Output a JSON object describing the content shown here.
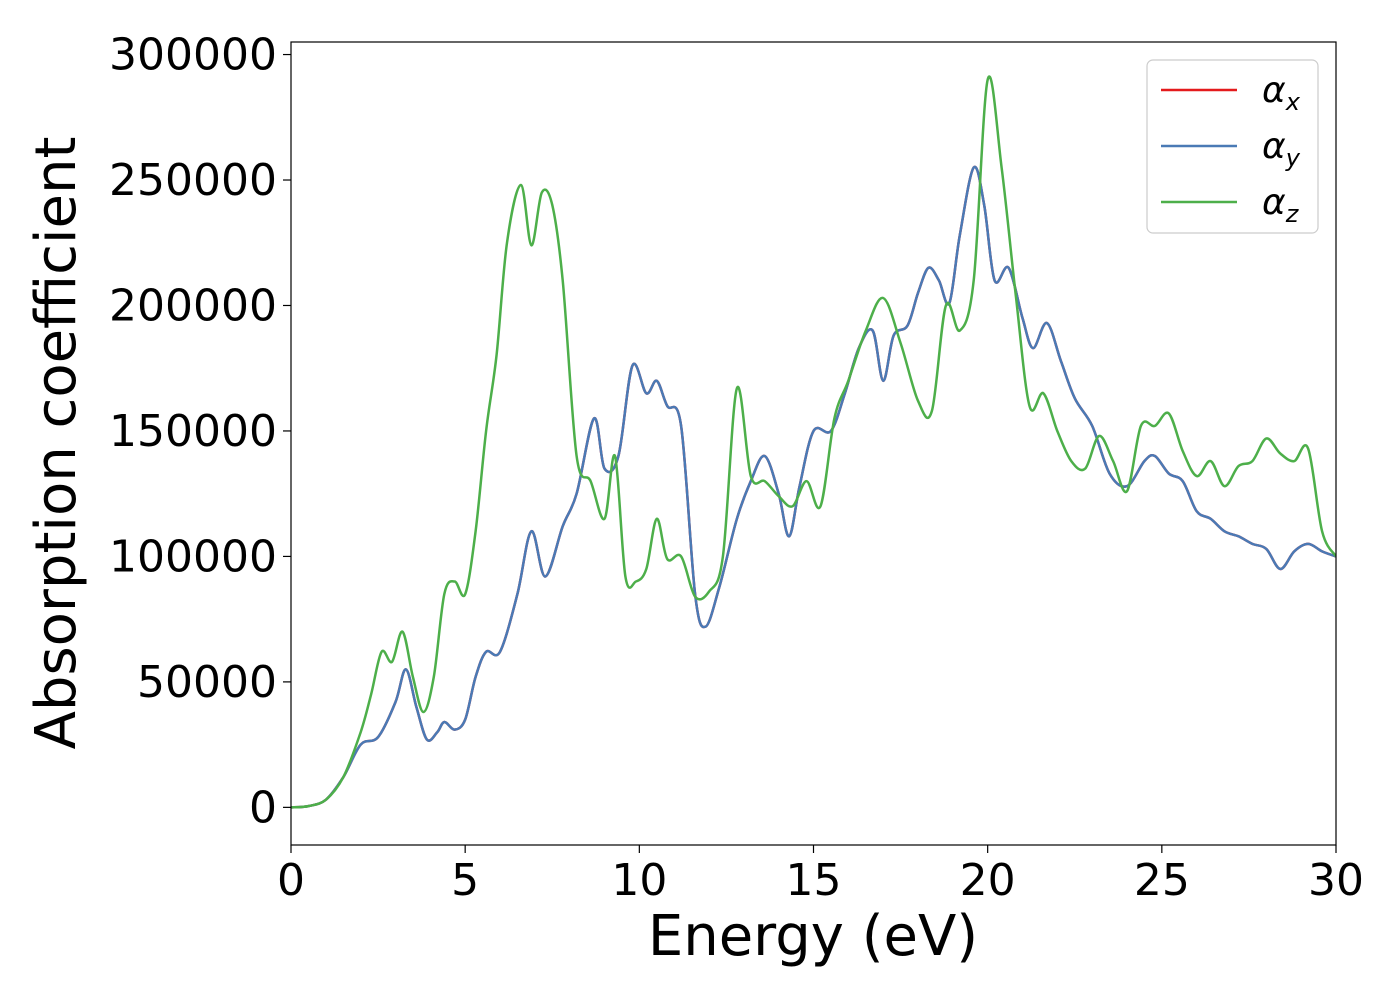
{
  "chart_data": {
    "type": "line",
    "title": "",
    "xlabel": "Energy (eV)",
    "ylabel": "Absorption coefficient",
    "xlim": [
      0,
      30
    ],
    "ylim": [
      -15000,
      305000
    ],
    "xticks": [
      "0",
      "5",
      "10",
      "15",
      "20",
      "25",
      "30"
    ],
    "yticks": [
      "0",
      "50000",
      "100000",
      "150000",
      "200000",
      "250000",
      "300000"
    ],
    "grid": false,
    "legend_position": "top-right",
    "series": [
      {
        "name": "α",
        "subscript": "x",
        "color": "#e41a1c",
        "x": [
          0,
          0.5,
          1.0,
          1.5,
          2.0,
          2.5,
          3.0,
          3.3,
          3.6,
          3.9,
          4.2,
          4.4,
          4.7,
          5.0,
          5.3,
          5.6,
          6.0,
          6.5,
          6.9,
          7.3,
          7.8,
          8.2,
          8.7,
          9.0,
          9.4,
          9.8,
          10.2,
          10.5,
          10.8,
          11.2,
          11.6,
          11.9,
          12.3,
          12.8,
          13.2,
          13.6,
          14.0,
          14.3,
          14.6,
          15.0,
          15.5,
          15.9,
          16.3,
          16.7,
          17.0,
          17.3,
          17.7,
          18.0,
          18.3,
          18.6,
          18.9,
          19.2,
          19.6,
          19.9,
          20.2,
          20.6,
          21.0,
          21.3,
          21.7,
          22.1,
          22.5,
          23.0,
          23.5,
          24.0,
          24.5,
          24.8,
          25.2,
          25.6,
          26.0,
          26.4,
          26.8,
          27.2,
          27.6,
          28.0,
          28.4,
          28.8,
          29.2,
          29.6,
          30.0
        ],
        "values": [
          0,
          500,
          3000,
          12000,
          25000,
          28000,
          42000,
          55000,
          40000,
          27000,
          30000,
          34000,
          31000,
          35000,
          52000,
          62000,
          62000,
          85000,
          110000,
          92000,
          112000,
          125000,
          155000,
          135000,
          140000,
          176000,
          165000,
          170000,
          160000,
          152000,
          85000,
          72000,
          88000,
          115000,
          130000,
          140000,
          125000,
          108000,
          128000,
          150000,
          150000,
          165000,
          183000,
          190000,
          170000,
          188000,
          192000,
          205000,
          215000,
          210000,
          201000,
          228000,
          255000,
          240000,
          210000,
          215000,
          195000,
          183000,
          193000,
          178000,
          163000,
          152000,
          133000,
          128000,
          138000,
          140000,
          133000,
          130000,
          118000,
          115000,
          110000,
          108000,
          105000,
          103000,
          95000,
          102000,
          105000,
          102000,
          100000
        ]
      },
      {
        "name": "α",
        "subscript": "y",
        "color": "#4a7ab5",
        "x": [
          0,
          0.5,
          1.0,
          1.5,
          2.0,
          2.5,
          3.0,
          3.3,
          3.6,
          3.9,
          4.2,
          4.4,
          4.7,
          5.0,
          5.3,
          5.6,
          6.0,
          6.5,
          6.9,
          7.3,
          7.8,
          8.2,
          8.7,
          9.0,
          9.4,
          9.8,
          10.2,
          10.5,
          10.8,
          11.2,
          11.6,
          11.9,
          12.3,
          12.8,
          13.2,
          13.6,
          14.0,
          14.3,
          14.6,
          15.0,
          15.5,
          15.9,
          16.3,
          16.7,
          17.0,
          17.3,
          17.7,
          18.0,
          18.3,
          18.6,
          18.9,
          19.2,
          19.6,
          19.9,
          20.2,
          20.6,
          21.0,
          21.3,
          21.7,
          22.1,
          22.5,
          23.0,
          23.5,
          24.0,
          24.5,
          24.8,
          25.2,
          25.6,
          26.0,
          26.4,
          26.8,
          27.2,
          27.6,
          28.0,
          28.4,
          28.8,
          29.2,
          29.6,
          30.0
        ],
        "values": [
          0,
          500,
          3000,
          12000,
          25000,
          28000,
          42000,
          55000,
          40000,
          27000,
          30000,
          34000,
          31000,
          35000,
          52000,
          62000,
          62000,
          85000,
          110000,
          92000,
          112000,
          125000,
          155000,
          135000,
          140000,
          176000,
          165000,
          170000,
          160000,
          152000,
          85000,
          72000,
          88000,
          115000,
          130000,
          140000,
          125000,
          108000,
          128000,
          150000,
          150000,
          165000,
          183000,
          190000,
          170000,
          188000,
          192000,
          205000,
          215000,
          210000,
          201000,
          228000,
          255000,
          240000,
          210000,
          215000,
          195000,
          183000,
          193000,
          178000,
          163000,
          152000,
          133000,
          128000,
          138000,
          140000,
          133000,
          130000,
          118000,
          115000,
          110000,
          108000,
          105000,
          103000,
          95000,
          102000,
          105000,
          102000,
          100000
        ]
      },
      {
        "name": "α",
        "subscript": "z",
        "color": "#4daf4a",
        "x": [
          0,
          0.5,
          1.0,
          1.5,
          2.0,
          2.3,
          2.6,
          2.9,
          3.2,
          3.5,
          3.8,
          4.1,
          4.4,
          4.7,
          5.0,
          5.3,
          5.6,
          5.9,
          6.2,
          6.6,
          6.9,
          7.2,
          7.5,
          7.8,
          8.2,
          8.6,
          9.0,
          9.3,
          9.6,
          9.9,
          10.2,
          10.5,
          10.8,
          11.2,
          11.6,
          12.0,
          12.4,
          12.8,
          13.2,
          13.6,
          14.0,
          14.4,
          14.8,
          15.2,
          15.6,
          16.0,
          16.5,
          17.0,
          17.5,
          18.0,
          18.4,
          18.8,
          19.2,
          19.6,
          20.0,
          20.4,
          20.8,
          21.2,
          21.6,
          22.0,
          22.4,
          22.8,
          23.2,
          23.6,
          24.0,
          24.4,
          24.8,
          25.2,
          25.6,
          26.0,
          26.4,
          26.8,
          27.2,
          27.6,
          28.0,
          28.4,
          28.8,
          29.2,
          29.6,
          30.0
        ],
        "values": [
          0,
          500,
          3000,
          12000,
          30000,
          45000,
          62000,
          58000,
          70000,
          52000,
          38000,
          52000,
          85000,
          90000,
          85000,
          110000,
          150000,
          180000,
          225000,
          248000,
          224000,
          245000,
          240000,
          210000,
          140000,
          130000,
          115000,
          140000,
          92000,
          90000,
          95000,
          115000,
          99000,
          100000,
          84000,
          86000,
          100000,
          167000,
          132000,
          130000,
          124000,
          120000,
          130000,
          120000,
          155000,
          170000,
          190000,
          203000,
          185000,
          162000,
          158000,
          200000,
          190000,
          210000,
          290000,
          255000,
          205000,
          160000,
          165000,
          150000,
          138000,
          135000,
          148000,
          138000,
          126000,
          152000,
          152000,
          157000,
          142000,
          132000,
          138000,
          128000,
          136000,
          138000,
          147000,
          141000,
          138000,
          143000,
          110000,
          100000
        ]
      }
    ]
  }
}
